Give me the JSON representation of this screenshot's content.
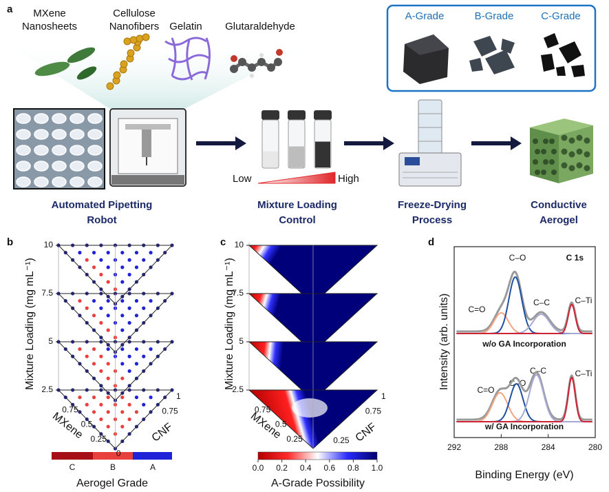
{
  "panel_a": {
    "label": "a",
    "materials": [
      [
        "MXene",
        "Nanosheets"
      ],
      [
        "Cellulose",
        "Nanofibers"
      ],
      [
        "Gelatin"
      ],
      [
        "Glutaraldehyde"
      ]
    ],
    "grades": [
      "A-Grade",
      "B-Grade",
      "C-Grade"
    ],
    "steps": [
      [
        "Automated Pipetting",
        "Robot"
      ],
      [
        "Mixture Loading",
        "Control"
      ],
      [
        "Freeze-Drying",
        "Process"
      ],
      [
        "Conductive",
        "Aerogel"
      ]
    ],
    "low": "Low",
    "high": "High"
  },
  "panel_b": {
    "label": "b",
    "y_label": "Mixture Loading (mg mL⁻¹)",
    "loadings": [
      "10",
      "7.5",
      "5",
      "2.5"
    ],
    "mxene_label": "MXene",
    "cnf_label": "CNF",
    "mxene_ticks": [
      "0.75",
      "0.5",
      "0.25",
      "0"
    ],
    "cnf_ticks": [
      "1",
      "0.75"
    ],
    "legend_title": "Aerogel Grade",
    "legend_labels": [
      "C",
      "B",
      "A"
    ]
  },
  "panel_c": {
    "label": "c",
    "y_label": "Mixture Loading (mg mL⁻¹)",
    "loadings": [
      "10",
      "7.5",
      "5",
      "2.5"
    ],
    "mxene_label": "MXene",
    "cnf_label": "CNF",
    "mxene_ticks": [
      "0.75",
      "0.5",
      "0.25"
    ],
    "cnf_ticks": [
      "1",
      "0.75",
      "0.25"
    ],
    "colorbar_label": "A-Grade Possibility",
    "colorbar_ticks": [
      {
        "value": 0,
        "label": "0.0"
      },
      {
        "value": 0.2,
        "label": "0.2"
      },
      {
        "value": 0.4,
        "label": "0.4"
      },
      {
        "value": 0.6,
        "label": "0.6"
      },
      {
        "value": 0.8,
        "label": "0.8"
      },
      {
        "value": 1,
        "label": "1.0"
      }
    ]
  },
  "panel_d": {
    "label": "d",
    "title": "C 1s",
    "x_label": "Binding Energy (eV)",
    "y_label": "Intensity (arb. units)",
    "xlim": [
      292,
      280
    ],
    "xticks": [
      292,
      288,
      284,
      280
    ],
    "upper_labels": [
      "C–O",
      "C=O",
      "C–C",
      "C–Ti"
    ],
    "upper_name": "w/o GA Incorporation",
    "lower_labels": [
      "C–C",
      "C–O",
      "C=O",
      "C–Ti"
    ],
    "lower_name": "w/ GA Incorporation"
  }
}
